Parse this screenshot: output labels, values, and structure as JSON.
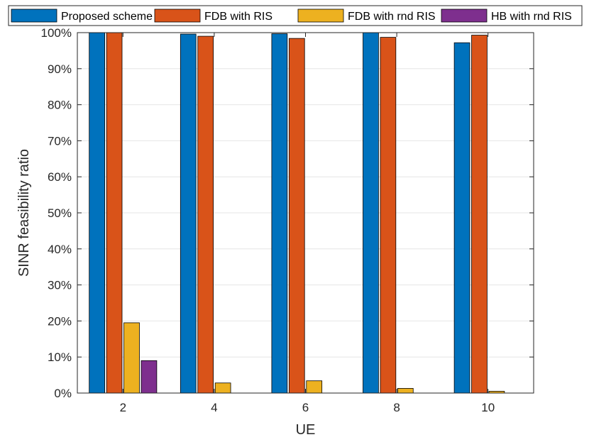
{
  "chart_data": {
    "type": "bar",
    "title": "",
    "xlabel": "UE",
    "ylabel": "SINR feasibility ratio",
    "categories": [
      "2",
      "4",
      "6",
      "8",
      "10"
    ],
    "ylim": [
      0,
      100
    ],
    "yticks": [
      "0%",
      "10%",
      "20%",
      "30%",
      "40%",
      "50%",
      "60%",
      "70%",
      "80%",
      "90%",
      "100%"
    ],
    "grid": true,
    "legend_position": "top, horizontal",
    "series": [
      {
        "name": "Proposed scheme",
        "color": "#0072BD",
        "values": [
          100,
          99.6,
          99.7,
          100,
          97.2
        ]
      },
      {
        "name": "FDB with RIS",
        "color": "#D95319",
        "values": [
          100,
          99.0,
          98.4,
          98.7,
          99.3
        ]
      },
      {
        "name": "FDB with rnd RIS",
        "color": "#EDB120",
        "values": [
          19.5,
          2.8,
          3.4,
          1.3,
          0.5
        ]
      },
      {
        "name": "HB with rnd RIS",
        "color": "#7E2F8E",
        "values": [
          9.0,
          0,
          0,
          0,
          0
        ]
      }
    ]
  }
}
